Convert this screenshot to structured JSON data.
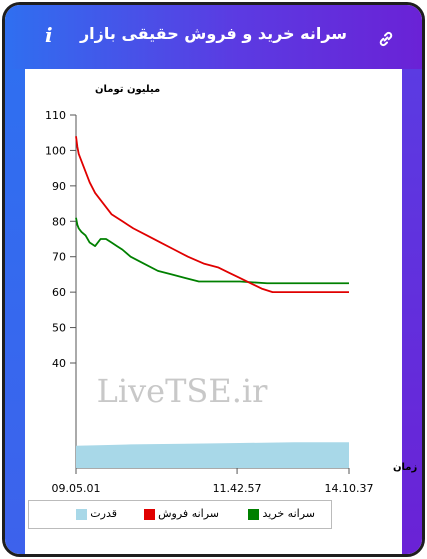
{
  "header": {
    "title": "سرانه خرید و فروش حقیقی بازار",
    "info_label": "i",
    "link_icon": "link-icon",
    "info_icon": "info-icon"
  },
  "colors": {
    "sell": "#e00000",
    "buy": "#008000",
    "power": "#a8d8e8"
  },
  "chart_data": {
    "type": "line",
    "ylabel": "میلیون تومان",
    "xlabel": "زمان",
    "ylim": [
      0,
      110
    ],
    "yticks": [
      40,
      50,
      60,
      70,
      80,
      90,
      100,
      110
    ],
    "xticks": [
      "09.05.01",
      "11.42.57",
      "14.10.37"
    ],
    "watermark": "LiveTSE.ir",
    "series": [
      {
        "name": "سرانه فروش",
        "color": "#e00000",
        "x": [
          0,
          0.005,
          0.01,
          0.02,
          0.035,
          0.05,
          0.07,
          0.1,
          0.13,
          0.17,
          0.21,
          0.26,
          0.31,
          0.36,
          0.41,
          0.47,
          0.52,
          0.56,
          0.6,
          0.64,
          0.68,
          0.72,
          0.8,
          0.9,
          1.0
        ],
        "values": [
          104,
          101,
          99,
          97,
          94,
          91,
          88,
          85,
          82,
          80,
          78,
          76,
          74,
          72,
          70,
          68,
          67,
          65.5,
          64,
          62.5,
          61,
          60,
          60,
          60,
          60
        ]
      },
      {
        "name": "سرانه خرید",
        "color": "#008000",
        "x": [
          0,
          0.005,
          0.01,
          0.02,
          0.035,
          0.05,
          0.07,
          0.09,
          0.11,
          0.13,
          0.15,
          0.17,
          0.2,
          0.25,
          0.3,
          0.35,
          0.4,
          0.45,
          0.5,
          0.55,
          0.6,
          0.7,
          0.8,
          0.9,
          1.0
        ],
        "values": [
          81,
          79,
          78,
          77,
          76,
          74,
          73,
          75,
          75,
          74,
          73,
          72,
          70,
          68,
          66,
          65,
          64,
          63,
          63,
          63,
          63,
          62.5,
          62.5,
          62.5,
          62.5
        ]
      },
      {
        "name": "قدرت",
        "color": "#a8d8e8",
        "x": [
          0,
          0.1,
          0.2,
          0.4,
          0.6,
          0.8,
          1.0
        ],
        "values": [
          0.3,
          0.35,
          0.4,
          0.45,
          0.5,
          0.55,
          0.55
        ]
      }
    ],
    "legend": [
      {
        "label": "سرانه خرید",
        "color": "#008000"
      },
      {
        "label": "سرانه فروش",
        "color": "#e00000"
      },
      {
        "label": "قدرت",
        "color": "#a8d8e8"
      }
    ]
  }
}
